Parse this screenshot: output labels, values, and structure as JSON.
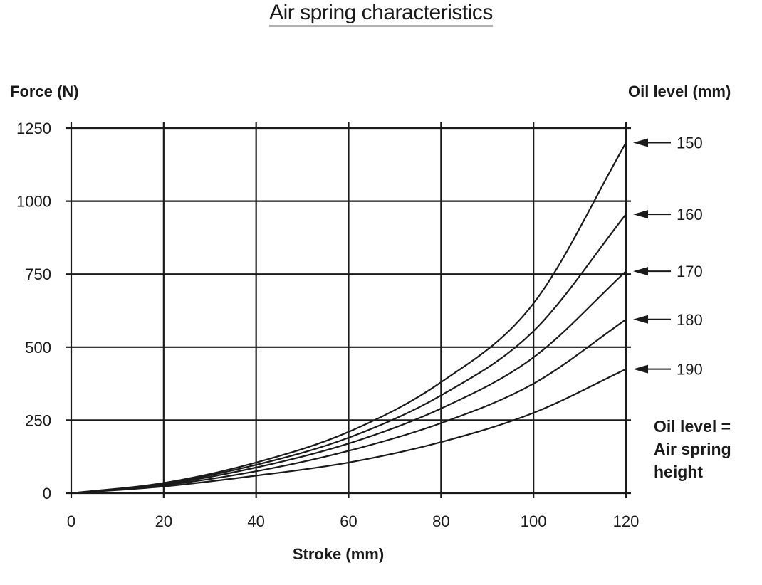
{
  "title": "Air spring characteristics",
  "y_axis_title": "Force (N)",
  "right_axis_title": "Oil level (mm)",
  "x_axis_title": "Stroke (mm)",
  "note_lines": [
    "Oil level =",
    "Air spring",
    "height"
  ],
  "chart_data": {
    "type": "line",
    "title": "Air spring characteristics",
    "xlabel": "Stroke (mm)",
    "ylabel": "Force (N)",
    "xlim": [
      0,
      120
    ],
    "ylim": [
      0,
      1250
    ],
    "x_ticks": [
      0,
      20,
      40,
      60,
      80,
      100,
      120
    ],
    "y_ticks": [
      0,
      250,
      500,
      750,
      1000,
      1250
    ],
    "grid": true,
    "legend_title": "Oil level (mm)",
    "legend_placement": "right",
    "x": [
      0,
      20,
      40,
      60,
      80,
      100,
      120
    ],
    "series": [
      {
        "name": "150",
        "values": [
          0,
          35,
          105,
          210,
          380,
          650,
          1200
        ]
      },
      {
        "name": "160",
        "values": [
          0,
          33,
          97,
          190,
          335,
          555,
          955
        ]
      },
      {
        "name": "170",
        "values": [
          0,
          30,
          88,
          170,
          290,
          465,
          760
        ]
      },
      {
        "name": "180",
        "values": [
          0,
          27,
          75,
          145,
          240,
          375,
          595
        ]
      },
      {
        "name": "190",
        "values": [
          0,
          23,
          60,
          105,
          175,
          275,
          425
        ]
      }
    ]
  }
}
